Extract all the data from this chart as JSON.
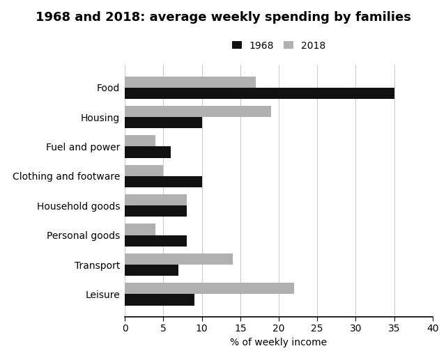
{
  "title": "1968 and 2018: average weekly spending by families",
  "xlabel": "% of weekly income",
  "categories": [
    "Food",
    "Housing",
    "Fuel and power",
    "Clothing and footware",
    "Household goods",
    "Personal goods",
    "Transport",
    "Leisure"
  ],
  "values_1968": [
    35,
    10,
    6,
    10,
    8,
    8,
    7,
    9
  ],
  "values_2018": [
    17,
    19,
    4,
    5,
    8,
    4,
    14,
    22
  ],
  "color_1968": "#111111",
  "color_2018": "#b0b0b0",
  "legend_labels": [
    "1968",
    "2018"
  ],
  "xlim": [
    0,
    40
  ],
  "xticks": [
    0,
    5,
    10,
    15,
    20,
    25,
    30,
    35,
    40
  ],
  "bar_height": 0.38,
  "grid_color": "#cccccc",
  "background_color": "#ffffff",
  "title_fontsize": 13,
  "label_fontsize": 10,
  "tick_fontsize": 10
}
